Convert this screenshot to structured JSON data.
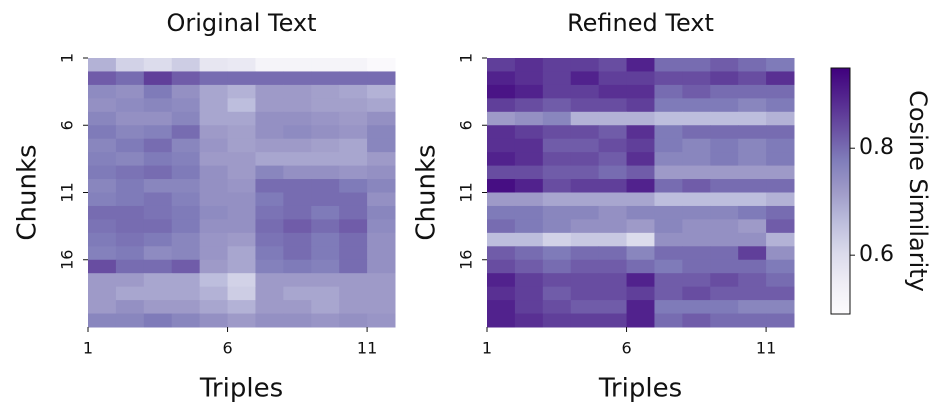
{
  "chart_data": [
    {
      "type": "heatmap",
      "title": "Original Text",
      "xlabel": "Triples",
      "ylabel": "Chunks",
      "xlim": [
        1,
        12
      ],
      "xticks": [
        1,
        6,
        11
      ],
      "ylim": [
        1,
        21
      ],
      "yticks": [
        1,
        6,
        11,
        16
      ],
      "zlim": [
        0.49,
        0.95
      ],
      "colormap": [
        "#fcfbfd",
        "#efedf5",
        "#dadaeb",
        "#bcbddc",
        "#9e9ac8",
        "#807dba",
        "#6a51a3",
        "#54278f",
        "#3f007d"
      ],
      "values": [
        [
          0.68,
          0.62,
          0.6,
          0.63,
          0.57,
          0.56,
          0.52,
          0.52,
          0.52,
          0.52,
          0.5
        ],
        [
          0.82,
          0.8,
          0.86,
          0.82,
          0.8,
          0.8,
          0.8,
          0.8,
          0.8,
          0.8,
          0.8
        ],
        [
          0.75,
          0.74,
          0.78,
          0.74,
          0.7,
          0.68,
          0.72,
          0.72,
          0.71,
          0.7,
          0.68
        ],
        [
          0.74,
          0.75,
          0.76,
          0.75,
          0.7,
          0.66,
          0.72,
          0.72,
          0.71,
          0.71,
          0.7
        ],
        [
          0.76,
          0.74,
          0.74,
          0.76,
          0.7,
          0.7,
          0.74,
          0.74,
          0.73,
          0.72,
          0.74
        ],
        [
          0.78,
          0.76,
          0.77,
          0.8,
          0.72,
          0.71,
          0.74,
          0.75,
          0.74,
          0.73,
          0.76
        ],
        [
          0.76,
          0.78,
          0.8,
          0.76,
          0.73,
          0.71,
          0.72,
          0.72,
          0.71,
          0.7,
          0.76
        ],
        [
          0.77,
          0.76,
          0.78,
          0.77,
          0.72,
          0.72,
          0.7,
          0.7,
          0.7,
          0.7,
          0.72
        ],
        [
          0.78,
          0.79,
          0.8,
          0.78,
          0.74,
          0.72,
          0.76,
          0.74,
          0.74,
          0.73,
          0.74
        ],
        [
          0.76,
          0.78,
          0.76,
          0.76,
          0.74,
          0.73,
          0.8,
          0.8,
          0.8,
          0.78,
          0.76
        ],
        [
          0.77,
          0.78,
          0.79,
          0.77,
          0.74,
          0.74,
          0.78,
          0.8,
          0.8,
          0.8,
          0.74
        ],
        [
          0.8,
          0.8,
          0.79,
          0.78,
          0.75,
          0.74,
          0.79,
          0.8,
          0.78,
          0.8,
          0.76
        ],
        [
          0.79,
          0.8,
          0.8,
          0.78,
          0.74,
          0.74,
          0.8,
          0.82,
          0.8,
          0.82,
          0.75
        ],
        [
          0.78,
          0.79,
          0.78,
          0.76,
          0.73,
          0.72,
          0.79,
          0.8,
          0.78,
          0.8,
          0.74
        ],
        [
          0.77,
          0.78,
          0.75,
          0.76,
          0.73,
          0.7,
          0.78,
          0.8,
          0.78,
          0.8,
          0.74
        ],
        [
          0.84,
          0.8,
          0.8,
          0.82,
          0.72,
          0.7,
          0.77,
          0.78,
          0.77,
          0.8,
          0.74
        ],
        [
          0.72,
          0.72,
          0.7,
          0.7,
          0.66,
          0.62,
          0.72,
          0.72,
          0.72,
          0.72,
          0.72
        ],
        [
          0.72,
          0.7,
          0.7,
          0.7,
          0.68,
          0.63,
          0.72,
          0.7,
          0.7,
          0.72,
          0.72
        ],
        [
          0.72,
          0.74,
          0.72,
          0.72,
          0.7,
          0.68,
          0.72,
          0.72,
          0.7,
          0.72,
          0.72
        ],
        [
          0.76,
          0.76,
          0.78,
          0.76,
          0.74,
          0.72,
          0.74,
          0.74,
          0.73,
          0.74,
          0.73
        ]
      ]
    },
    {
      "type": "heatmap",
      "title": "Refined Text",
      "xlabel": "Triples",
      "ylabel": "Chunks",
      "xlim": [
        1,
        12
      ],
      "xticks": [
        1,
        6,
        11
      ],
      "ylim": [
        1,
        21
      ],
      "yticks": [
        1,
        6,
        11,
        16
      ],
      "zlim": [
        0.49,
        0.95
      ],
      "colormap": [
        "#fcfbfd",
        "#efedf5",
        "#dadaeb",
        "#bcbddc",
        "#9e9ac8",
        "#807dba",
        "#6a51a3",
        "#54278f",
        "#3f007d"
      ],
      "colorbar": {
        "label": "Cosine Similarity",
        "ticks": [
          0.6,
          0.8
        ]
      },
      "values": [
        [
          0.86,
          0.88,
          0.86,
          0.86,
          0.84,
          0.9,
          0.8,
          0.8,
          0.82,
          0.8,
          0.78
        ],
        [
          0.9,
          0.88,
          0.86,
          0.9,
          0.86,
          0.86,
          0.84,
          0.84,
          0.86,
          0.84,
          0.88
        ],
        [
          0.92,
          0.9,
          0.86,
          0.86,
          0.88,
          0.88,
          0.8,
          0.82,
          0.8,
          0.8,
          0.8
        ],
        [
          0.86,
          0.84,
          0.82,
          0.84,
          0.84,
          0.86,
          0.78,
          0.78,
          0.78,
          0.76,
          0.78
        ],
        [
          0.72,
          0.74,
          0.76,
          0.68,
          0.68,
          0.68,
          0.66,
          0.66,
          0.66,
          0.66,
          0.68
        ],
        [
          0.88,
          0.86,
          0.84,
          0.84,
          0.82,
          0.88,
          0.78,
          0.8,
          0.8,
          0.8,
          0.8
        ],
        [
          0.88,
          0.88,
          0.82,
          0.82,
          0.84,
          0.86,
          0.78,
          0.76,
          0.78,
          0.76,
          0.78
        ],
        [
          0.9,
          0.88,
          0.84,
          0.84,
          0.82,
          0.88,
          0.76,
          0.76,
          0.78,
          0.76,
          0.78
        ],
        [
          0.84,
          0.84,
          0.82,
          0.82,
          0.8,
          0.82,
          0.72,
          0.72,
          0.72,
          0.72,
          0.72
        ],
        [
          0.93,
          0.9,
          0.84,
          0.86,
          0.86,
          0.9,
          0.8,
          0.82,
          0.8,
          0.8,
          0.8
        ],
        [
          0.72,
          0.72,
          0.7,
          0.7,
          0.7,
          0.7,
          0.66,
          0.66,
          0.66,
          0.66,
          0.68
        ],
        [
          0.78,
          0.78,
          0.76,
          0.76,
          0.74,
          0.76,
          0.76,
          0.76,
          0.76,
          0.78,
          0.8
        ],
        [
          0.8,
          0.78,
          0.76,
          0.74,
          0.74,
          0.72,
          0.76,
          0.74,
          0.74,
          0.72,
          0.82
        ],
        [
          0.66,
          0.66,
          0.62,
          0.64,
          0.64,
          0.6,
          0.74,
          0.74,
          0.74,
          0.74,
          0.68
        ],
        [
          0.82,
          0.8,
          0.78,
          0.8,
          0.8,
          0.76,
          0.8,
          0.8,
          0.8,
          0.86,
          0.74
        ],
        [
          0.84,
          0.82,
          0.8,
          0.82,
          0.82,
          0.8,
          0.78,
          0.8,
          0.8,
          0.8,
          0.78
        ],
        [
          0.9,
          0.86,
          0.84,
          0.84,
          0.84,
          0.9,
          0.82,
          0.82,
          0.84,
          0.82,
          0.8
        ],
        [
          0.88,
          0.86,
          0.82,
          0.84,
          0.84,
          0.86,
          0.82,
          0.84,
          0.82,
          0.82,
          0.82
        ],
        [
          0.9,
          0.86,
          0.84,
          0.82,
          0.82,
          0.9,
          0.78,
          0.78,
          0.78,
          0.76,
          0.76
        ],
        [
          0.9,
          0.88,
          0.86,
          0.86,
          0.86,
          0.9,
          0.8,
          0.82,
          0.8,
          0.8,
          0.8
        ]
      ]
    }
  ]
}
